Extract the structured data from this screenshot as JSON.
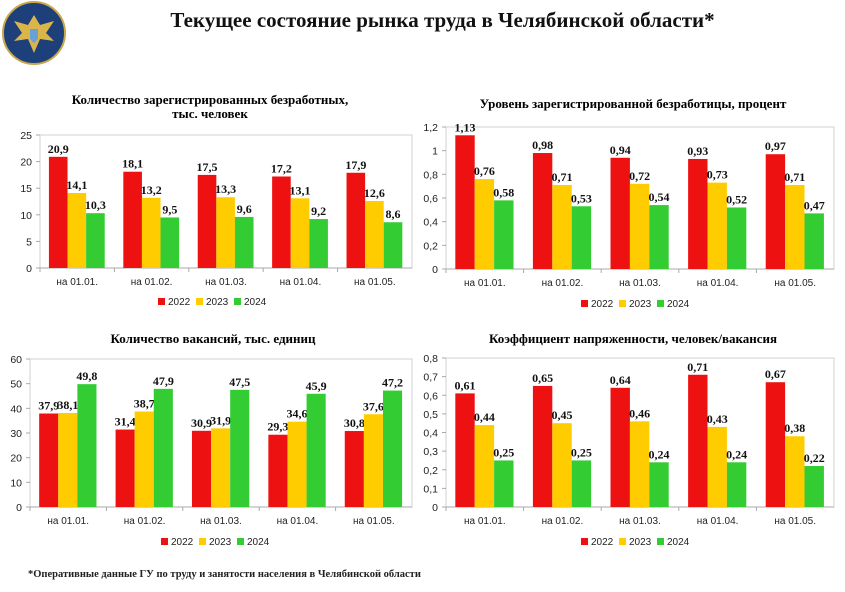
{
  "title": "Текущее состояние рынка труда в Челябинской области*",
  "footnote": "*Оперативные данные ГУ по труду и занятости населения в Челябинской области",
  "colors": {
    "2022": "#ee1111",
    "2023": "#ffcc00",
    "2024": "#33cc33"
  },
  "chart_data": [
    {
      "type": "bar",
      "title": [
        "Количество зарегистрированных безработных,",
        "тыс. человек"
      ],
      "categories": [
        "на 01.01.",
        "на 01.02.",
        "на 01.03.",
        "на 01.04.",
        "на 01.05."
      ],
      "ylim": [
        0,
        25
      ],
      "ystep": 5,
      "grid": false,
      "legend": "bottom",
      "series": [
        {
          "name": "2022",
          "values": [
            20.9,
            18.1,
            17.5,
            17.2,
            17.9
          ]
        },
        {
          "name": "2023",
          "values": [
            14.1,
            13.2,
            13.3,
            13.1,
            12.6
          ]
        },
        {
          "name": "2024",
          "values": [
            10.3,
            9.5,
            9.6,
            9.2,
            8.6
          ]
        }
      ]
    },
    {
      "type": "bar",
      "title": [
        "Уровень зарегистрированной безработицы, процент"
      ],
      "categories": [
        "на 01.01.",
        "на 01.02.",
        "на 01.03.",
        "на 01.04.",
        "на 01.05."
      ],
      "ylim": [
        0,
        1.2
      ],
      "ystep": 0.2,
      "grid": false,
      "legend": "bottom",
      "series": [
        {
          "name": "2022",
          "values": [
            1.13,
            0.98,
            0.94,
            0.93,
            0.97
          ]
        },
        {
          "name": "2023",
          "values": [
            0.76,
            0.71,
            0.72,
            0.73,
            0.71
          ]
        },
        {
          "name": "2024",
          "values": [
            0.58,
            0.53,
            0.54,
            0.52,
            0.47
          ]
        }
      ]
    },
    {
      "type": "bar",
      "title": [
        "Количество вакансий, тыс. единиц"
      ],
      "categories": [
        "на 01.01.",
        "на 01.02.",
        "на 01.03.",
        "на 01.04.",
        "на 01.05."
      ],
      "ylim": [
        0,
        60
      ],
      "ystep": 10,
      "grid": false,
      "legend": "bottom",
      "series": [
        {
          "name": "2022",
          "values": [
            37.9,
            31.4,
            30.9,
            29.3,
            30.8
          ]
        },
        {
          "name": "2023",
          "values": [
            38.1,
            38.7,
            31.9,
            34.6,
            37.6
          ]
        },
        {
          "name": "2024",
          "values": [
            49.8,
            47.9,
            47.5,
            45.9,
            47.2
          ]
        }
      ]
    },
    {
      "type": "bar",
      "title": [
        "Коэффициент напряженности, человек/вакансия"
      ],
      "categories": [
        "на 01.01.",
        "на 01.02.",
        "на 01.03.",
        "на 01.04.",
        "на 01.05."
      ],
      "ylim": [
        0,
        0.8
      ],
      "ystep": 0.1,
      "grid": false,
      "legend": "bottom",
      "series": [
        {
          "name": "2022",
          "values": [
            0.61,
            0.65,
            0.64,
            0.71,
            0.67
          ]
        },
        {
          "name": "2023",
          "values": [
            0.44,
            0.45,
            0.46,
            0.43,
            0.38
          ]
        },
        {
          "name": "2024",
          "values": [
            0.25,
            0.25,
            0.24,
            0.24,
            0.22
          ]
        }
      ]
    }
  ]
}
